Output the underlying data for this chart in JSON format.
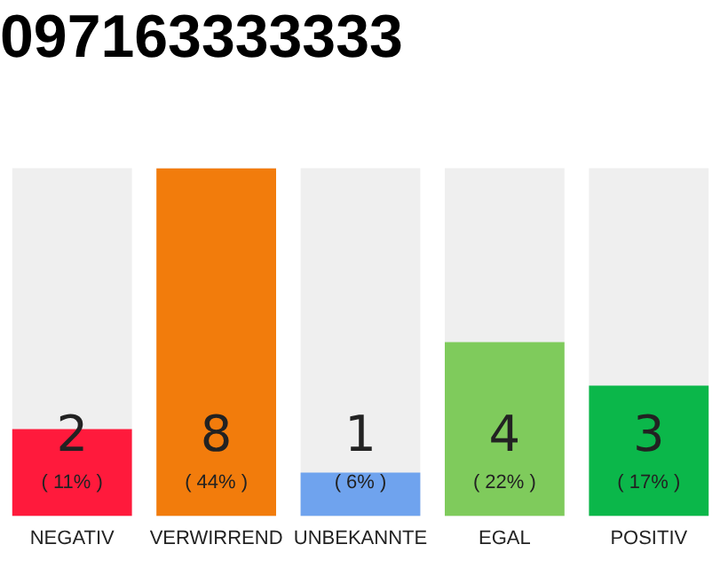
{
  "chart_data": {
    "type": "bar",
    "title": "097163333333",
    "categories": [
      "NEGATIV",
      "VERWIRREND",
      "UNBEKANNTE",
      "EGAL",
      "POSITIV"
    ],
    "values": [
      2,
      8,
      1,
      4,
      3
    ],
    "colors": [
      "#ff1a3c",
      "#f27c0c",
      "#6fa3ee",
      "#7fcb5c",
      "#0bb74a"
    ],
    "value_labels": [
      "2\n( 11% )",
      "8\n( 44% )",
      "1\n( 6% )",
      "4\n( 22% )",
      "3\n( 17% )"
    ],
    "ylim": [
      0,
      8
    ],
    "tick_labels": "x",
    "grid": false,
    "legend": false
  }
}
